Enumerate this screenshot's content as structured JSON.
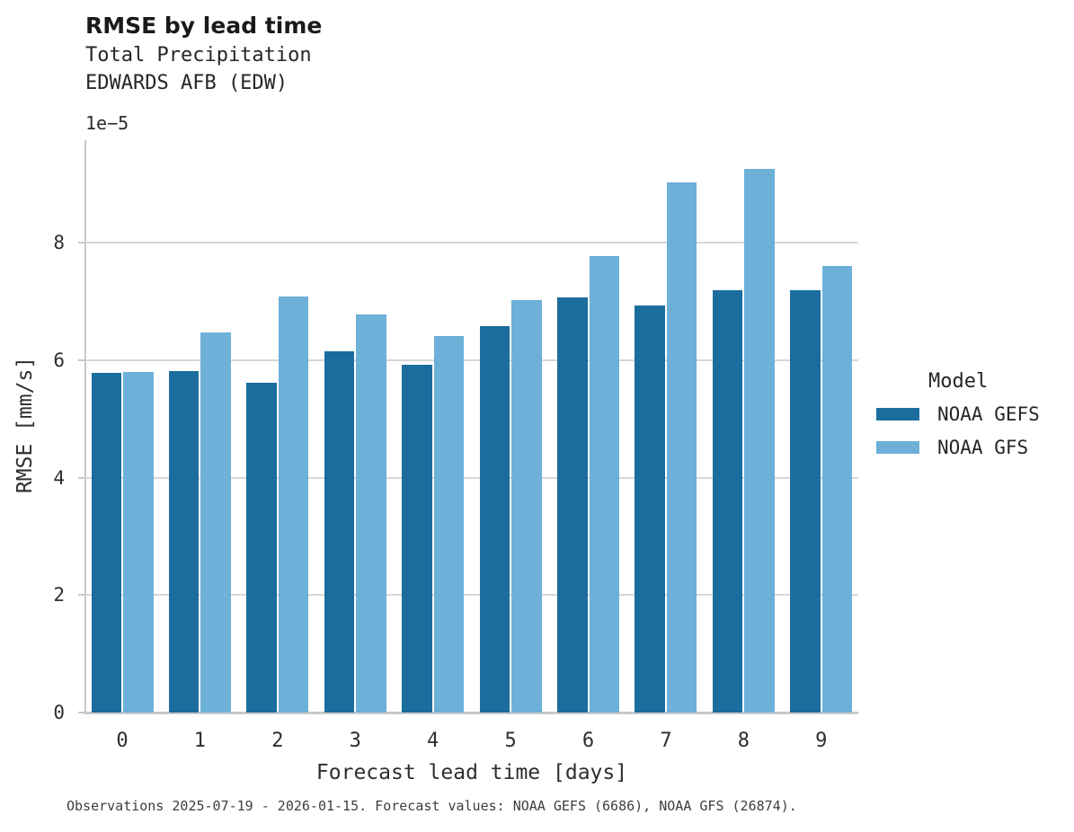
{
  "chart_data": {
    "type": "bar",
    "title": "RMSE by lead time",
    "subtitle": [
      "Total Precipitation",
      "EDWARDS AFB (EDW)"
    ],
    "y_offset_label": "1e−5",
    "ylabel": "RMSE [mm/s]",
    "xlabel": "Forecast lead time [days]",
    "categories": [
      "0",
      "1",
      "2",
      "3",
      "4",
      "5",
      "6",
      "7",
      "8",
      "9"
    ],
    "series": [
      {
        "name": "NOAA GEFS",
        "color": "#1b6d9d",
        "values": [
          5.78,
          5.82,
          5.61,
          6.15,
          5.93,
          6.58,
          7.07,
          6.93,
          7.2,
          7.19
        ]
      },
      {
        "name": "NOAA GFS",
        "color": "#6db0d8",
        "values": [
          5.8,
          6.47,
          7.09,
          6.78,
          6.42,
          7.03,
          7.77,
          9.03,
          9.26,
          7.6
        ]
      }
    ],
    "value_scale": "1e-5",
    "yticks": [
      0,
      2,
      4,
      6,
      8
    ],
    "ylim": [
      0,
      9.75
    ],
    "grid": "horizontal",
    "legend_title": "Model",
    "legend_position": "right",
    "caption": "Observations 2025-07-19 - 2026-01-15. Forecast values: NOAA GEFS (6686), NOAA GFS (26874)."
  },
  "colors": {
    "grid": "#d7d7d7",
    "spine": "#c9c9c9",
    "text": "#2e2e2e"
  }
}
